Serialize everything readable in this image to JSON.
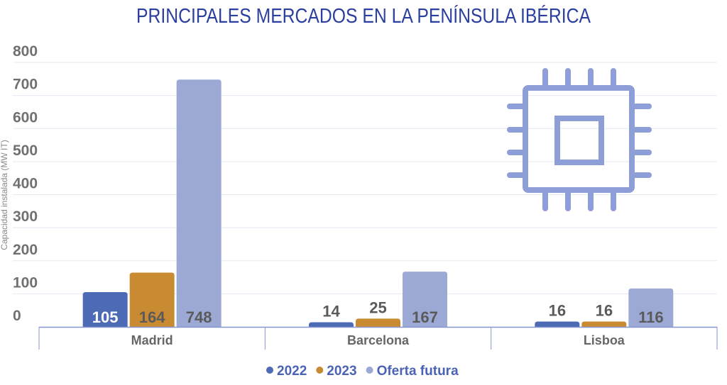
{
  "chart_data": {
    "type": "bar",
    "title": "PRINCIPALES MERCADOS EN LA PENÍNSULA IBÉRICA",
    "ylabel": "Capacidad instalada (MW IT)",
    "xlabel": "",
    "ylim": [
      0,
      800
    ],
    "yticks": [
      "0",
      "100",
      "200",
      "300",
      "400",
      "500",
      "600",
      "700",
      "800"
    ],
    "categories": [
      "Madrid",
      "Barcelona",
      "Lisboa"
    ],
    "series": [
      {
        "name": "2022",
        "color": "#4c6bb4",
        "values": [
          105,
          14,
          16
        ]
      },
      {
        "name": "2023",
        "color": "#c98b32",
        "values": [
          164,
          25,
          16
        ]
      },
      {
        "name": "Oferta futura",
        "color": "#9ca9d4",
        "values": [
          748,
          167,
          116
        ]
      }
    ],
    "legend_position": "bottom-center",
    "grid": true,
    "decoration_icon": "microchip-icon",
    "colors": {
      "title": "#2b3f9e",
      "axis": "#8796cf",
      "label": "#666666",
      "icon": "#8e9ed6"
    }
  }
}
